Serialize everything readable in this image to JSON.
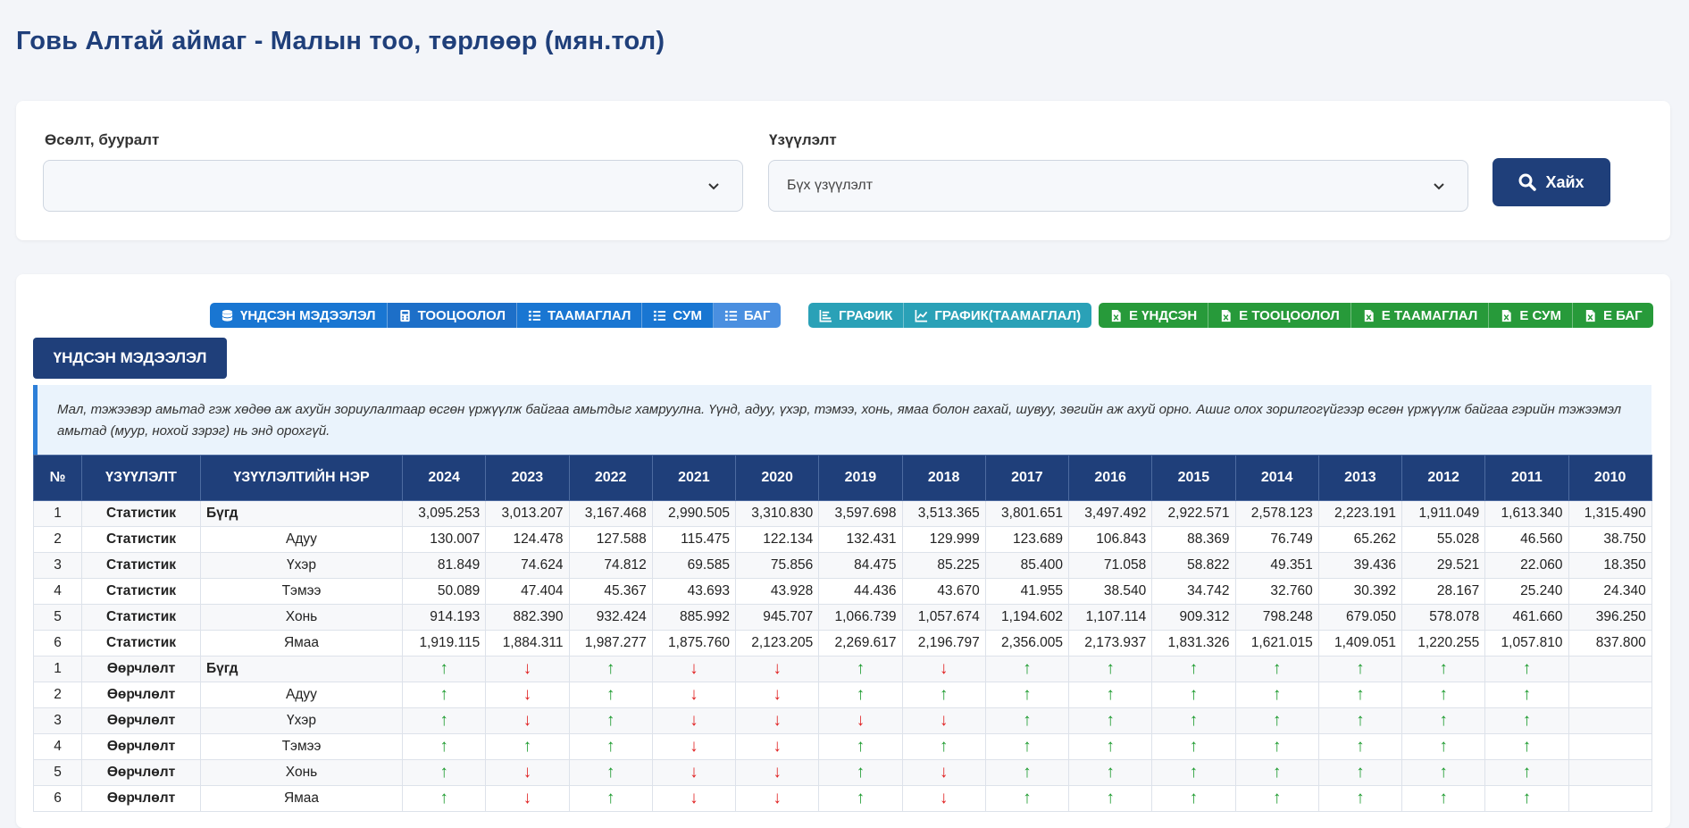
{
  "page": {
    "title": "Говь Алтай аймаг - Малын тоо, төрлөөр (мян.тол)"
  },
  "filters": {
    "growth_label": "Өсөлт, бууралт",
    "growth_value": "",
    "indicator_label": "Үзүүлэлт",
    "indicator_value": "Бүх үзүүлэлт",
    "search_label": "Хайх"
  },
  "toolbar": {
    "blue": [
      {
        "label": "ҮНДСЭН МЭДЭЭЛЭЛ",
        "icon": "database-icon"
      },
      {
        "label": "ТООЦООЛОЛ",
        "icon": "calculator-icon"
      },
      {
        "label": "ТААМАГЛАЛ",
        "icon": "list-icon"
      },
      {
        "label": "СУМ",
        "icon": "list-icon"
      },
      {
        "label": "БАГ",
        "icon": "list-icon"
      }
    ],
    "teal": [
      {
        "label": "ГРАФИК",
        "icon": "bar-chart-icon"
      },
      {
        "label": "ГРАФИК(ТААМАГЛАЛ)",
        "icon": "line-chart-icon"
      }
    ],
    "green": [
      {
        "label": "Е ҮНДСЭН",
        "icon": "excel-icon"
      },
      {
        "label": "Е ТООЦООЛОЛ",
        "icon": "excel-icon"
      },
      {
        "label": "Е ТААМАГЛАЛ",
        "icon": "excel-icon"
      },
      {
        "label": "Е СУМ",
        "icon": "excel-icon"
      },
      {
        "label": "Е БАГ",
        "icon": "excel-icon"
      }
    ],
    "colors": {
      "blue": "#1976d2",
      "teal": "#2aa1b7",
      "green": "#279a3a"
    }
  },
  "section": {
    "title": "ҮНДСЭН МЭДЭЭЛЭЛ"
  },
  "note": {
    "text": "Мал, тэжээвэр амьтад гэж хөдөө аж ахуйн зориулалтаар өсгөн үржүүлж байгаа амьтдыг хамруулна. Үүнд, адуу, үхэр, тэмээ, хонь, ямаа болон гахай, шувуу, зөгийн аж ахуй орно. Ашиг олох зорилгогүйгээр өсгөн үржүүлж байгаа гэрийн тэжээмэл амьтад (муур, нохой зэрэг) нь энд орохгүй."
  },
  "table": {
    "headers": [
      "№",
      "ҮЗҮҮЛЭЛТ",
      "ҮЗҮҮЛЭЛТИЙН НЭР",
      "2024",
      "2023",
      "2022",
      "2021",
      "2020",
      "2019",
      "2018",
      "2017",
      "2016",
      "2015",
      "2014",
      "2013",
      "2012",
      "2011",
      "2010"
    ],
    "rows": [
      {
        "no": "1",
        "type": "Статистик",
        "name": "Бүгд",
        "top": true,
        "values": [
          "3,095.253",
          "3,013.207",
          "3,167.468",
          "2,990.505",
          "3,310.830",
          "3,597.698",
          "3,513.365",
          "3,801.651",
          "3,497.492",
          "2,922.571",
          "2,578.123",
          "2,223.191",
          "1,911.049",
          "1,613.340",
          "1,315.490"
        ]
      },
      {
        "no": "2",
        "type": "Статистик",
        "name": "Адуу",
        "top": false,
        "values": [
          "130.007",
          "124.478",
          "127.588",
          "115.475",
          "122.134",
          "132.431",
          "129.999",
          "123.689",
          "106.843",
          "88.369",
          "76.749",
          "65.262",
          "55.028",
          "46.560",
          "38.750"
        ]
      },
      {
        "no": "3",
        "type": "Статистик",
        "name": "Үхэр",
        "top": false,
        "values": [
          "81.849",
          "74.624",
          "74.812",
          "69.585",
          "75.856",
          "84.475",
          "85.225",
          "85.400",
          "71.058",
          "58.822",
          "49.351",
          "39.436",
          "29.521",
          "22.060",
          "18.350"
        ]
      },
      {
        "no": "4",
        "type": "Статистик",
        "name": "Тэмээ",
        "top": false,
        "values": [
          "50.089",
          "47.404",
          "45.367",
          "43.693",
          "43.928",
          "44.436",
          "43.670",
          "41.955",
          "38.540",
          "34.742",
          "32.760",
          "30.392",
          "28.167",
          "25.240",
          "24.340"
        ]
      },
      {
        "no": "5",
        "type": "Статистик",
        "name": "Хонь",
        "top": false,
        "values": [
          "914.193",
          "882.390",
          "932.424",
          "885.992",
          "945.707",
          "1,066.739",
          "1,057.674",
          "1,194.602",
          "1,107.114",
          "909.312",
          "798.248",
          "679.050",
          "578.078",
          "461.660",
          "396.250"
        ]
      },
      {
        "no": "6",
        "type": "Статистик",
        "name": "Ямаа",
        "top": false,
        "values": [
          "1,919.115",
          "1,884.311",
          "1,987.277",
          "1,875.760",
          "2,123.205",
          "2,269.617",
          "2,196.797",
          "2,356.005",
          "2,173.937",
          "1,831.326",
          "1,621.015",
          "1,409.051",
          "1,220.255",
          "1,057.810",
          "837.800"
        ]
      },
      {
        "no": "1",
        "type": "Өөрчлөлт",
        "name": "Бүгд",
        "top": true,
        "arrows": [
          "up",
          "down",
          "up",
          "down",
          "down",
          "up",
          "down",
          "up",
          "up",
          "up",
          "up",
          "up",
          "up",
          "up",
          ""
        ]
      },
      {
        "no": "2",
        "type": "Өөрчлөлт",
        "name": "Адуу",
        "top": false,
        "arrows": [
          "up",
          "down",
          "up",
          "down",
          "down",
          "up",
          "up",
          "up",
          "up",
          "up",
          "up",
          "up",
          "up",
          "up",
          ""
        ]
      },
      {
        "no": "3",
        "type": "Өөрчлөлт",
        "name": "Үхэр",
        "top": false,
        "arrows": [
          "up",
          "down",
          "up",
          "down",
          "down",
          "down",
          "down",
          "up",
          "up",
          "up",
          "up",
          "up",
          "up",
          "up",
          ""
        ]
      },
      {
        "no": "4",
        "type": "Өөрчлөлт",
        "name": "Тэмээ",
        "top": false,
        "arrows": [
          "up",
          "up",
          "up",
          "down",
          "down",
          "up",
          "up",
          "up",
          "up",
          "up",
          "up",
          "up",
          "up",
          "up",
          ""
        ]
      },
      {
        "no": "5",
        "type": "Өөрчлөлт",
        "name": "Хонь",
        "top": false,
        "arrows": [
          "up",
          "down",
          "up",
          "down",
          "down",
          "up",
          "down",
          "up",
          "up",
          "up",
          "up",
          "up",
          "up",
          "up",
          ""
        ]
      },
      {
        "no": "6",
        "type": "Өөрчлөлт",
        "name": "Ямаа",
        "top": false,
        "arrows": [
          "up",
          "down",
          "up",
          "down",
          "down",
          "up",
          "down",
          "up",
          "up",
          "up",
          "up",
          "up",
          "up",
          "up",
          ""
        ]
      }
    ]
  }
}
